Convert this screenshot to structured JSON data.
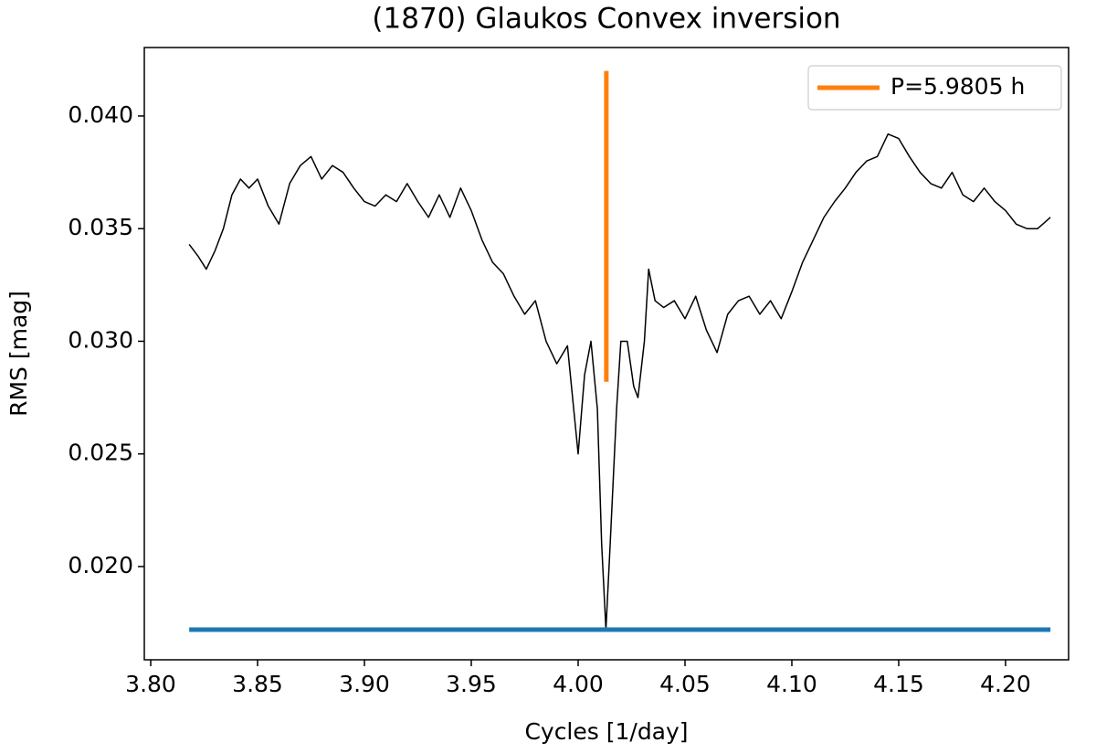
{
  "chart_data": {
    "type": "line",
    "title": "(1870) Glaukos Convex inversion",
    "x_label": "Cycles [1/day]",
    "y_label": "RMS [mag]",
    "xlim": [
      3.797,
      4.2295
    ],
    "ylim": [
      0.01586,
      0.04304
    ],
    "xticks": [
      {
        "value": 3.8,
        "label": "3.80"
      },
      3.85,
      {
        "value": 3.9,
        "label": "3.90"
      },
      3.95,
      {
        "value": 4.0,
        "label": "4.00"
      },
      4.05,
      {
        "value": 4.1,
        "label": "4.10"
      },
      4.15,
      {
        "value": 4.2,
        "label": "4.20"
      }
    ],
    "yticks": [
      {
        "value": 0.02,
        "label": "0.020"
      },
      0.025,
      {
        "value": 0.03,
        "label": "0.030"
      },
      0.035,
      {
        "value": 0.04,
        "label": "0.040"
      }
    ],
    "legend": "upper right",
    "series": [
      {
        "color": "#000000",
        "width": 1.5,
        "x": [
          3.818,
          3.822,
          3.826,
          3.83,
          3.834,
          3.838,
          3.842,
          3.846,
          3.85,
          3.855,
          3.86,
          3.865,
          3.87,
          3.875,
          3.88,
          3.885,
          3.89,
          3.895,
          3.9,
          3.905,
          3.91,
          3.915,
          3.92,
          3.925,
          3.93,
          3.935,
          3.94,
          3.945,
          3.95,
          3.955,
          3.96,
          3.965,
          3.97,
          3.975,
          3.98,
          3.985,
          3.99,
          3.995,
          4.0,
          4.003,
          4.006,
          4.009,
          4.011,
          4.013,
          4.015,
          4.018,
          4.02,
          4.023,
          4.026,
          4.028,
          4.031,
          4.033,
          4.036,
          4.04,
          4.045,
          4.05,
          4.055,
          4.06,
          4.065,
          4.07,
          4.075,
          4.08,
          4.085,
          4.09,
          4.095,
          4.1,
          4.105,
          4.11,
          4.115,
          4.12,
          4.125,
          4.13,
          4.135,
          4.14,
          4.145,
          4.15,
          4.155,
          4.16,
          4.165,
          4.17,
          4.175,
          4.18,
          4.185,
          4.19,
          4.195,
          4.2,
          4.205,
          4.21,
          4.215,
          4.221
        ],
        "values": [
          0.0343,
          0.0338,
          0.0332,
          0.034,
          0.035,
          0.0365,
          0.0372,
          0.0368,
          0.0372,
          0.036,
          0.0352,
          0.037,
          0.0378,
          0.0382,
          0.0372,
          0.0378,
          0.0375,
          0.0368,
          0.0362,
          0.036,
          0.0365,
          0.0362,
          0.037,
          0.0362,
          0.0355,
          0.0365,
          0.0355,
          0.0368,
          0.0358,
          0.0345,
          0.0335,
          0.033,
          0.032,
          0.0312,
          0.0318,
          0.03,
          0.029,
          0.0298,
          0.025,
          0.0285,
          0.03,
          0.027,
          0.021,
          0.0172,
          0.021,
          0.027,
          0.03,
          0.03,
          0.028,
          0.0275,
          0.03,
          0.0332,
          0.0318,
          0.0315,
          0.0318,
          0.031,
          0.032,
          0.0305,
          0.0295,
          0.0312,
          0.0318,
          0.032,
          0.0312,
          0.0318,
          0.031,
          0.0322,
          0.0335,
          0.0345,
          0.0355,
          0.0362,
          0.0368,
          0.0375,
          0.038,
          0.0382,
          0.0392,
          0.039,
          0.0382,
          0.0375,
          0.037,
          0.0368,
          0.0375,
          0.0365,
          0.0362,
          0.0368,
          0.0362,
          0.0358,
          0.0352,
          0.035,
          0.035,
          0.0355
        ]
      },
      {
        "name": "P=5.9805 h",
        "color": "#ff7f0e",
        "width": 5,
        "x": [
          4.0132,
          4.0132
        ],
        "values": [
          0.0282,
          0.042
        ]
      },
      {
        "color": "#1f77b4",
        "width": 5,
        "x": [
          3.818,
          4.221
        ],
        "values": [
          0.0172,
          0.0172
        ]
      }
    ]
  }
}
